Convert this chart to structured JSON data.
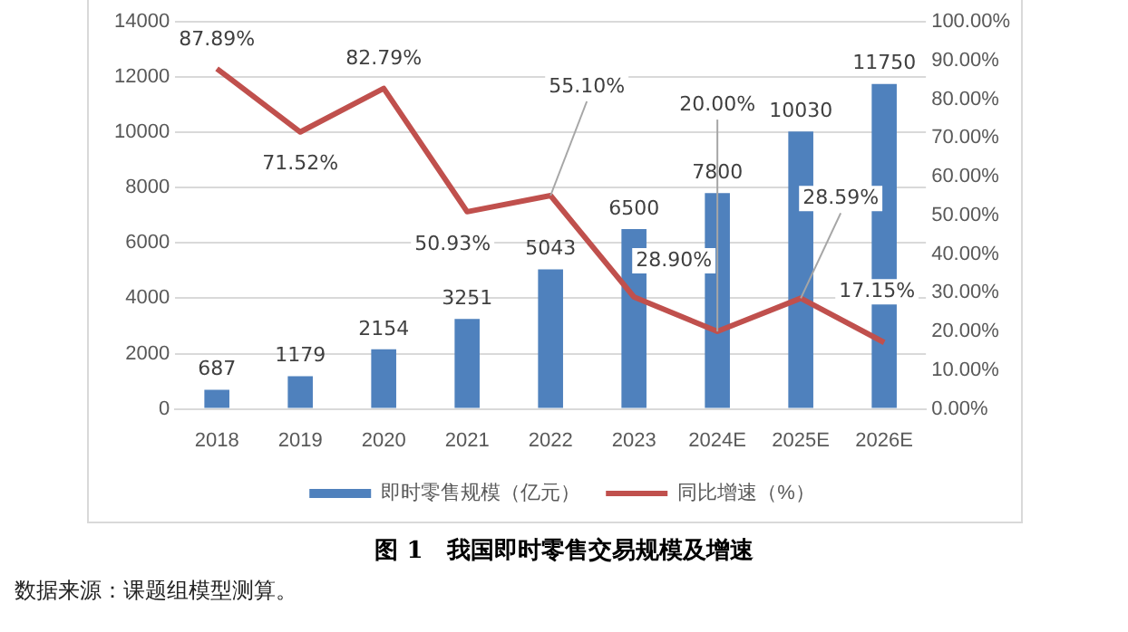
{
  "chart_data": {
    "type": "bar",
    "title": "图 1　我国即时零售交易规模及增速",
    "annotations": [
      "数据来源：课题组模型测算。"
    ],
    "categories": [
      "2018",
      "2019",
      "2020",
      "2021",
      "2022",
      "2023",
      "2024E",
      "2025E",
      "2026E"
    ],
    "series": [
      {
        "name": "即时零售规模（亿元）",
        "color": "#4f81bd",
        "values": [
          687,
          1179,
          2154,
          3251,
          5043,
          6500,
          7800,
          10030,
          11750
        ],
        "value_labels": [
          "687",
          "1179",
          "2154",
          "3251",
          "5043",
          "6500",
          "7800",
          "10030",
          "11750"
        ]
      },
      {
        "name": "同比增速（%）",
        "type": "line",
        "axis": "y2",
        "color": "#c0504d",
        "marker": "none",
        "values": [
          87.89,
          71.52,
          82.79,
          50.93,
          55.1,
          28.9,
          20.0,
          28.59,
          17.15
        ],
        "value_labels": [
          "87.89%",
          "71.52%",
          "82.79%",
          "50.93%",
          "55.10%",
          "28.90%",
          "20.00%",
          "28.59%",
          "17.15%"
        ]
      }
    ],
    "ylim": [
      0,
      14000
    ],
    "yticks": [
      0,
      2000,
      4000,
      6000,
      8000,
      10000,
      12000,
      14000
    ],
    "y2lim": [
      0,
      100
    ],
    "y2ticks": [
      {
        "value": 0,
        "label": "0.00%"
      },
      {
        "value": 10,
        "label": "10.00%"
      },
      {
        "value": 20,
        "label": "20.00%"
      },
      {
        "value": 30,
        "label": "30.00%"
      },
      {
        "value": 40,
        "label": "40.00%"
      },
      {
        "value": 50,
        "label": "50.00%"
      },
      {
        "value": 60,
        "label": "60.00%"
      },
      {
        "value": 70,
        "label": "70.00%"
      },
      {
        "value": 80,
        "label": "80.00%"
      },
      {
        "value": 90,
        "label": "90.00%"
      },
      {
        "value": 100,
        "label": "100.00%"
      }
    ],
    "grid": "y",
    "legend": "bottom"
  }
}
